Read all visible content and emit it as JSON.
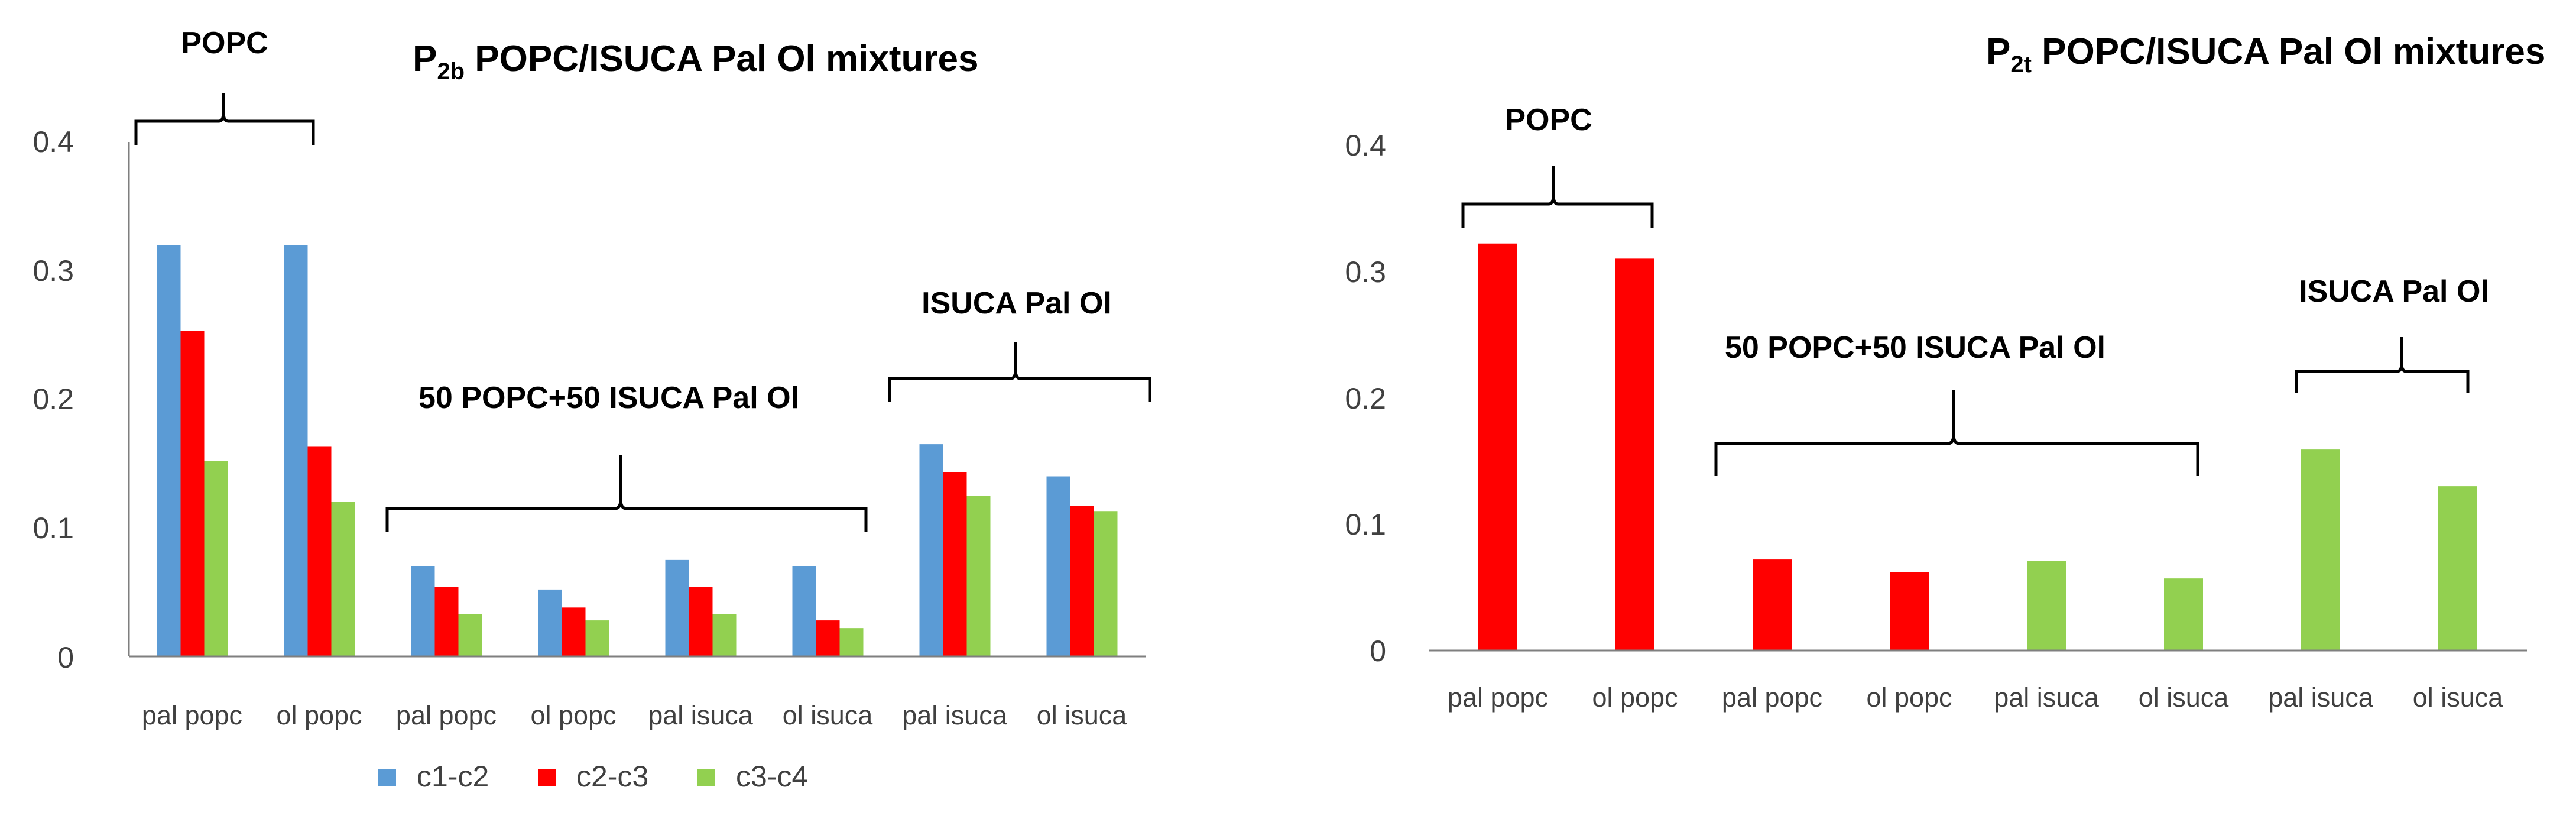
{
  "colors": {
    "c1-c2": "#5b9bd5",
    "c2-c3": "#ff0000",
    "c3-c4": "#92d050",
    "axis": "#7f7f7f",
    "text": "#404040"
  },
  "chart_data": [
    {
      "type": "bar",
      "title_main": "P",
      "title_sub": "2b",
      "title_rest": " POPC/ISUCA Pal Ol mixtures",
      "categories": [
        "pal popc",
        "ol popc",
        "pal popc",
        "ol popc",
        "pal isuca",
        "ol isuca",
        "pal isuca",
        "ol isuca"
      ],
      "ylim": [
        0,
        0.4
      ],
      "yticks": [
        "0",
        "0.1",
        "0.2",
        "0.3",
        "0.4"
      ],
      "series": [
        {
          "name": "c1-c2",
          "values": [
            0.32,
            0.32,
            0.07,
            0.052,
            0.075,
            0.07,
            0.165,
            0.14
          ]
        },
        {
          "name": "c2-c3",
          "values": [
            0.253,
            0.163,
            0.054,
            0.038,
            0.054,
            0.028,
            0.143,
            0.117
          ]
        },
        {
          "name": "c3-c4",
          "values": [
            0.152,
            0.12,
            0.033,
            0.028,
            0.033,
            0.022,
            0.125,
            0.113
          ]
        }
      ],
      "legend": [
        "c1-c2",
        "c2-c3",
        "c3-c4"
      ],
      "annotations": [
        "POPC",
        "50 POPC+50 ISUCA Pal Ol",
        "ISUCA Pal Ol"
      ]
    },
    {
      "type": "bar",
      "title_main": "P",
      "title_sub": "2t",
      "title_rest": " POPC/ISUCA Pal Ol mixtures",
      "categories": [
        "pal popc",
        "ol popc",
        "pal popc",
        "ol popc",
        "pal isuca",
        "ol isuca",
        "pal isuca",
        "ol isuca"
      ],
      "ylim": [
        0,
        0.4
      ],
      "yticks": [
        "0",
        "0.1",
        "0.2",
        "0.3",
        "0.4"
      ],
      "values": [
        0.322,
        0.31,
        0.072,
        0.062,
        0.071,
        0.057,
        0.159,
        0.13
      ],
      "bar_colors": [
        "c2-c3",
        "c2-c3",
        "c2-c3",
        "c2-c3",
        "c3-c4",
        "c3-c4",
        "c3-c4",
        "c3-c4"
      ],
      "annotations": [
        "POPC",
        "50 POPC+50 ISUCA Pal Ol",
        "ISUCA Pal Ol"
      ]
    }
  ]
}
